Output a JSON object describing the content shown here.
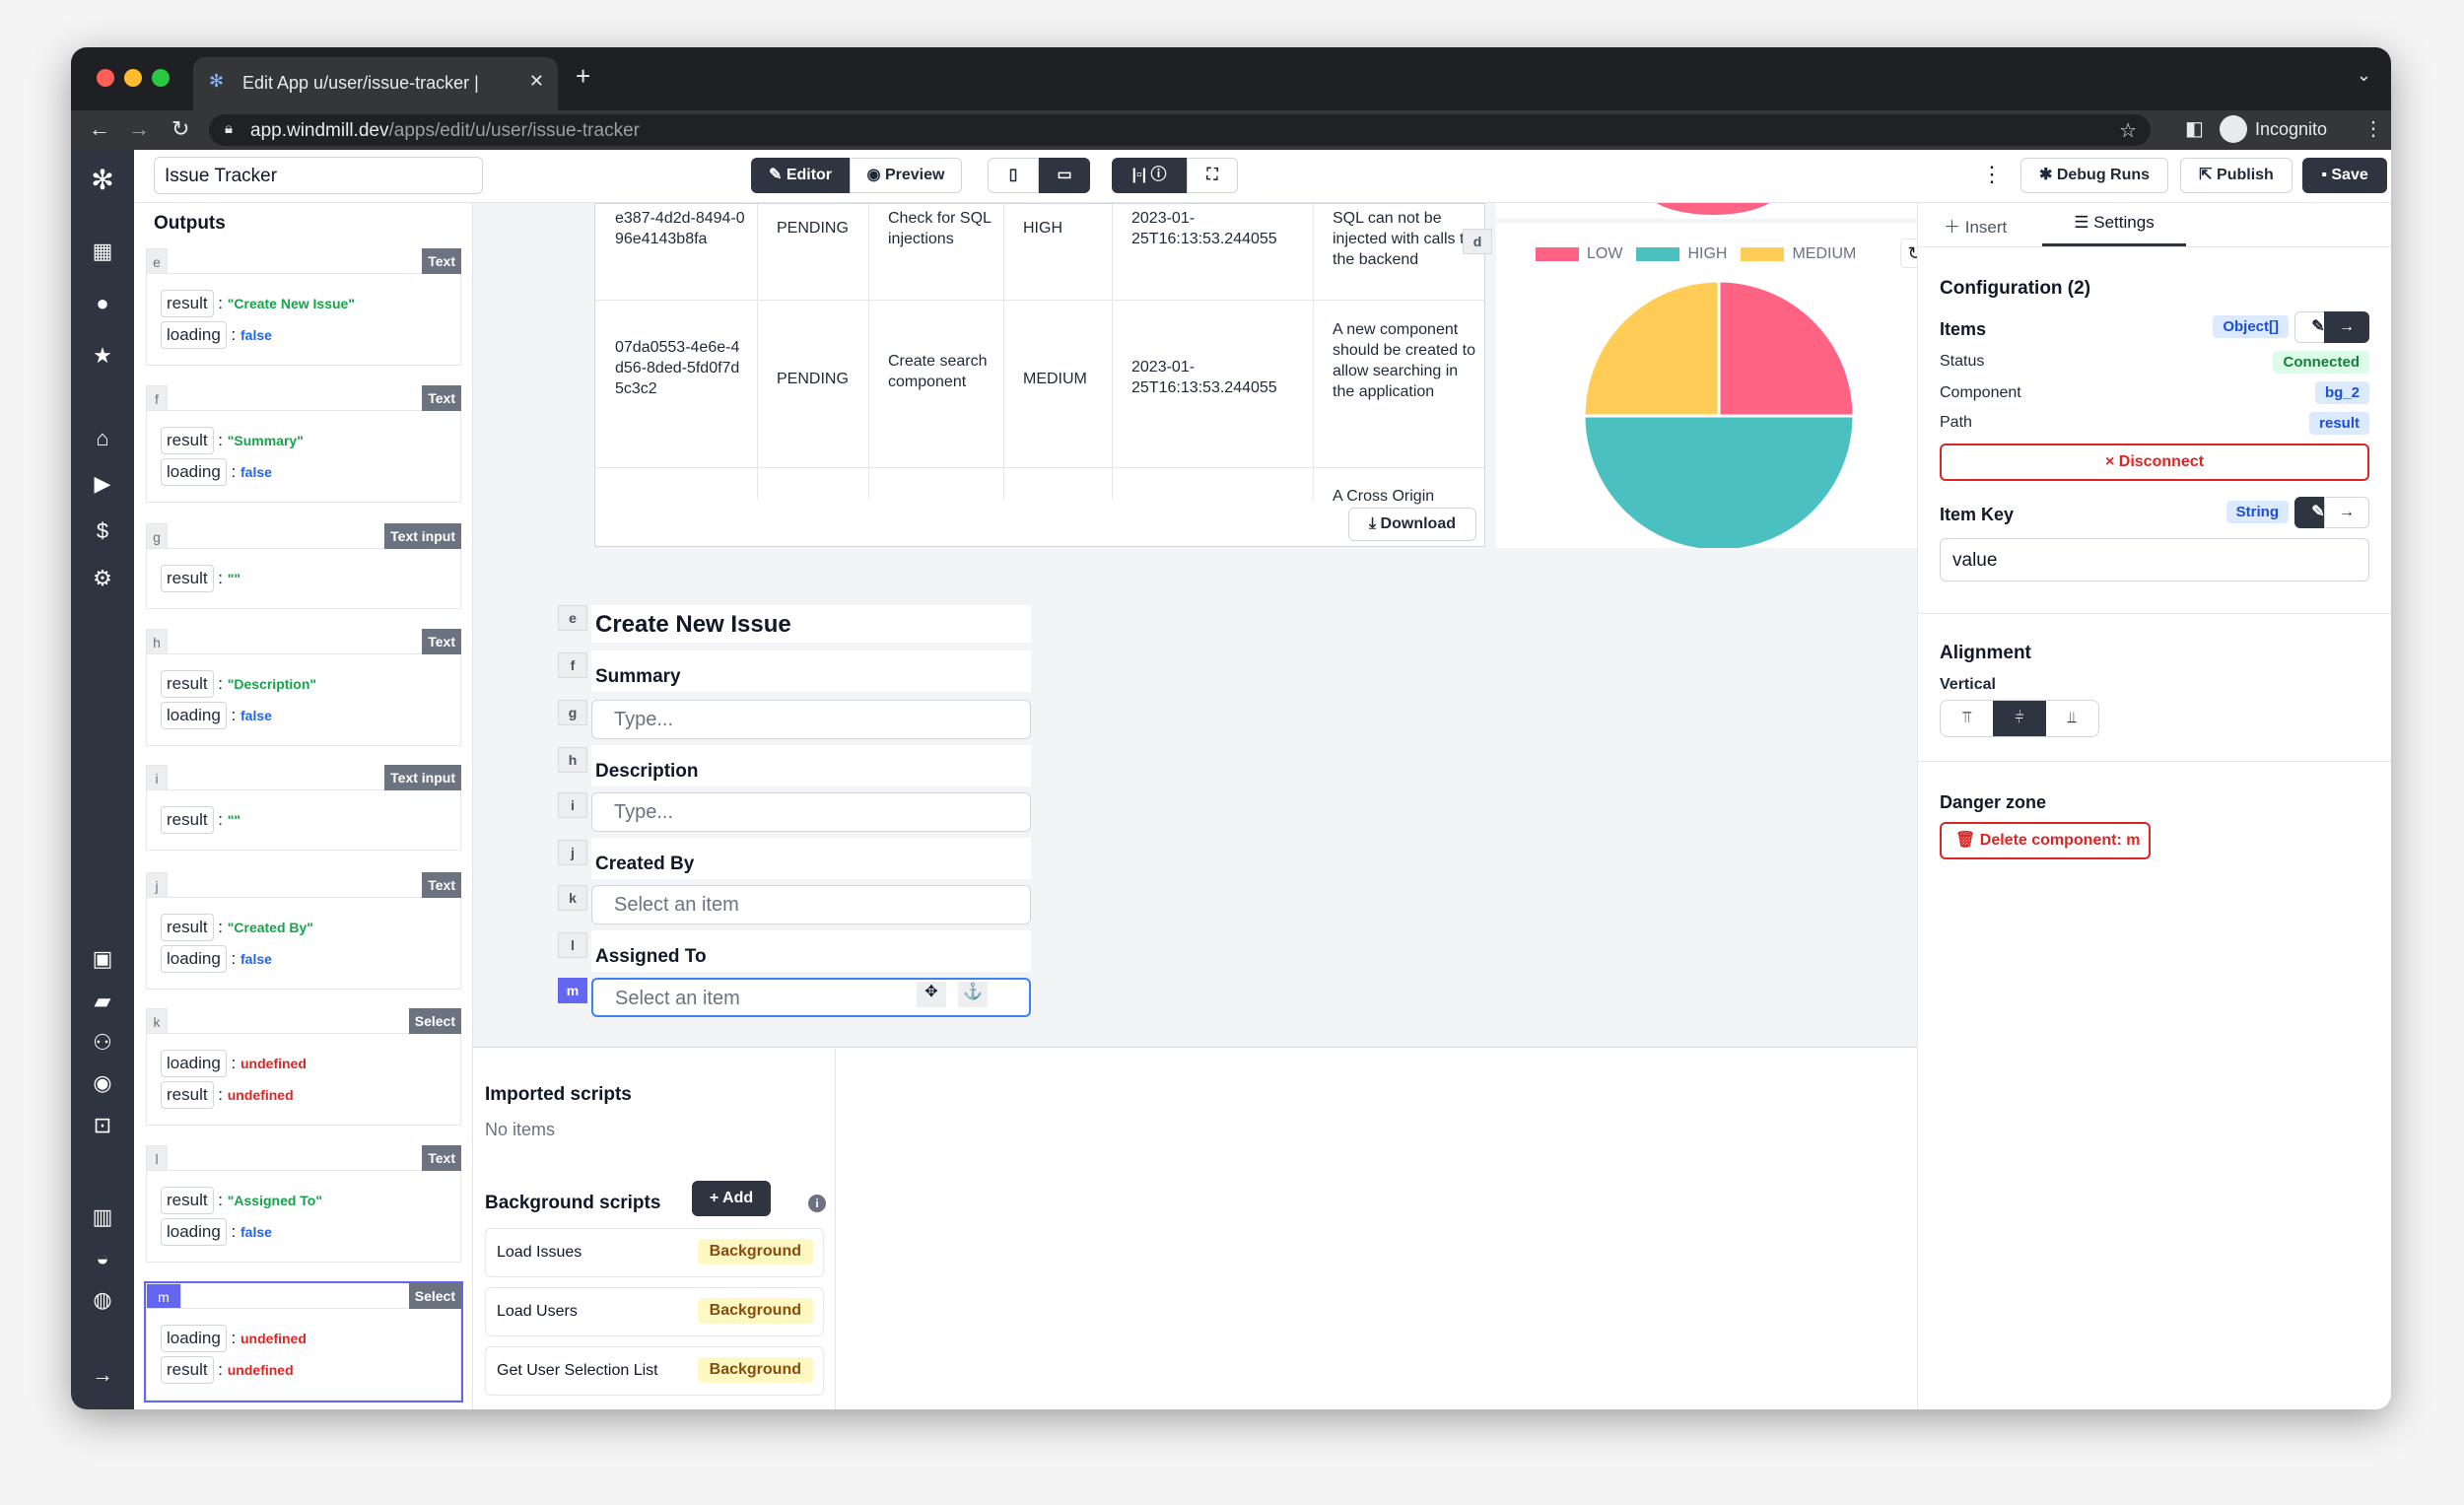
{
  "browser": {
    "tab_title": "Edit App u/user/issue-tracker |",
    "url_host": "app.windmill.dev",
    "url_path": "/apps/edit/u/user/issue-tracker",
    "profile": "Incognito"
  },
  "header": {
    "app_name": "Issue Tracker",
    "editor": "Editor",
    "preview": "Preview",
    "debug_runs": "Debug Runs",
    "publish": "Publish",
    "save": "Save"
  },
  "outputs": {
    "title": "Outputs",
    "cards": [
      {
        "id": "e",
        "type": "Text",
        "fields": [
          {
            "key": "result",
            "value": "\"Create New Issue\"",
            "kind": "string"
          },
          {
            "key": "loading",
            "value": "false",
            "kind": "bool"
          }
        ]
      },
      {
        "id": "f",
        "type": "Text",
        "fields": [
          {
            "key": "result",
            "value": "\"Summary\"",
            "kind": "string"
          },
          {
            "key": "loading",
            "value": "false",
            "kind": "bool"
          }
        ]
      },
      {
        "id": "g",
        "type": "Text input",
        "fields": [
          {
            "key": "result",
            "value": "\"\"",
            "kind": "string"
          }
        ]
      },
      {
        "id": "h",
        "type": "Text",
        "fields": [
          {
            "key": "result",
            "value": "\"Description\"",
            "kind": "string"
          },
          {
            "key": "loading",
            "value": "false",
            "kind": "bool"
          }
        ]
      },
      {
        "id": "i",
        "type": "Text input",
        "fields": [
          {
            "key": "result",
            "value": "\"\"",
            "kind": "string"
          }
        ]
      },
      {
        "id": "j",
        "type": "Text",
        "fields": [
          {
            "key": "result",
            "value": "\"Created By\"",
            "kind": "string"
          },
          {
            "key": "loading",
            "value": "false",
            "kind": "bool"
          }
        ]
      },
      {
        "id": "k",
        "type": "Select",
        "fields": [
          {
            "key": "loading",
            "value": "undefined",
            "kind": "undef"
          },
          {
            "key": "result",
            "value": "undefined",
            "kind": "undef"
          }
        ]
      },
      {
        "id": "l",
        "type": "Text",
        "fields": [
          {
            "key": "result",
            "value": "\"Assigned To\"",
            "kind": "string"
          },
          {
            "key": "loading",
            "value": "false",
            "kind": "bool"
          }
        ]
      },
      {
        "id": "m",
        "type": "Select",
        "fields": [
          {
            "key": "loading",
            "value": "undefined",
            "kind": "undef"
          },
          {
            "key": "result",
            "value": "undefined",
            "kind": "undef"
          }
        ]
      }
    ]
  },
  "table": {
    "rows": [
      [
        "e387-4d2d-8494-096e4143b8fa",
        "PENDING",
        "Check for SQL injections",
        "HIGH",
        "2023-01-25T16:13:53.244055",
        "SQL can not be injected with calls to the backend"
      ],
      [
        "07da0553-4e6e-4d56-8ded-5fd0f7d5c3c2",
        "PENDING",
        "Create search component",
        "MEDIUM",
        "2023-01-25T16:13:53.244055",
        "A new component should be created to allow searching in the application"
      ],
      [
        "",
        "",
        "",
        "",
        "",
        "A Cross Origin"
      ]
    ],
    "download": "Download"
  },
  "chart_data": {
    "type": "pie",
    "component_id": "d",
    "categories": [
      "LOW",
      "HIGH",
      "MEDIUM"
    ],
    "values": [
      1,
      2,
      1
    ],
    "colors": [
      "#ff6384",
      "#4bc0c0",
      "#ffcd56"
    ],
    "legend": "top"
  },
  "form": {
    "title": "Create New Issue",
    "summary": "Summary",
    "summary_ph": "Type...",
    "description": "Description",
    "description_ph": "Type...",
    "created_by": "Created By",
    "created_by_ph": "Select an item",
    "assigned_to": "Assigned To",
    "assigned_to_ph": "Select an item",
    "ids": [
      "e",
      "f",
      "g",
      "h",
      "i",
      "j",
      "k",
      "l",
      "m"
    ]
  },
  "scripts": {
    "imported_title": "Imported scripts",
    "imported_empty": "No items",
    "background_title": "Background scripts",
    "add": "+ Add",
    "items": [
      {
        "name": "Load Issues",
        "badge": "Background"
      },
      {
        "name": "Load Users",
        "badge": "Background"
      },
      {
        "name": "Get User Selection List",
        "badge": "Background"
      }
    ]
  },
  "settings": {
    "insert": "Insert",
    "settings": "Settings",
    "config_title": "Configuration (2)",
    "items_label": "Items",
    "items_type": "Object[]",
    "status_label": "Status",
    "status": "Connected",
    "component_label": "Component",
    "component": "bg_2",
    "path_label": "Path",
    "path": "result",
    "disconnect": "× Disconnect",
    "item_key_label": "Item Key",
    "item_key_type": "String",
    "item_key_value": "value",
    "alignment_title": "Alignment",
    "vertical_label": "Vertical",
    "danger_title": "Danger zone",
    "delete": "Delete component: m"
  }
}
